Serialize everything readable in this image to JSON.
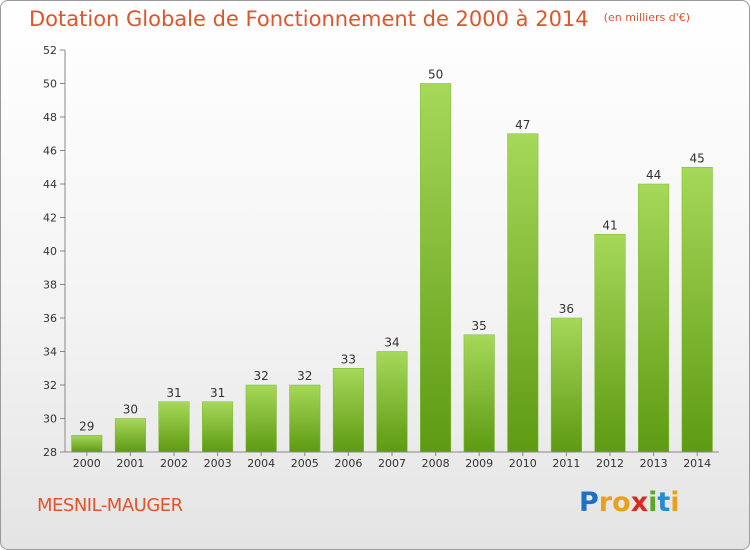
{
  "title": "Dotation Globale de Fonctionnement de 2000 à 2014",
  "unit": "(en milliers d'€)",
  "commune": "MESNIL-MAUGER",
  "brand": {
    "letters": [
      "P",
      "r",
      "o",
      "x",
      "i",
      "t",
      "i"
    ],
    "colors": [
      "#1f6fc2",
      "#e8a21a",
      "#e8a21a",
      "#d72a22",
      "#5aa72b",
      "#1f8fd0",
      "#e8a21a"
    ]
  },
  "colors": {
    "bar_light": "#9fd250",
    "bar_dark": "#5e9a12",
    "axis": "#888888",
    "title": "#e0542c"
  },
  "chart_data": {
    "type": "bar",
    "categories": [
      "2000",
      "2001",
      "2002",
      "2003",
      "2004",
      "2005",
      "2006",
      "2007",
      "2008",
      "2009",
      "2010",
      "2011",
      "2012",
      "2013",
      "2014"
    ],
    "values": [
      29,
      30,
      31,
      31,
      32,
      32,
      33,
      34,
      50,
      35,
      47,
      36,
      41,
      44,
      45
    ],
    "ylim": [
      28,
      52
    ],
    "yticks": [
      28,
      30,
      32,
      34,
      36,
      38,
      40,
      42,
      44,
      46,
      48,
      50,
      52
    ],
    "grid": false,
    "xlabel": "",
    "ylabel": ""
  }
}
